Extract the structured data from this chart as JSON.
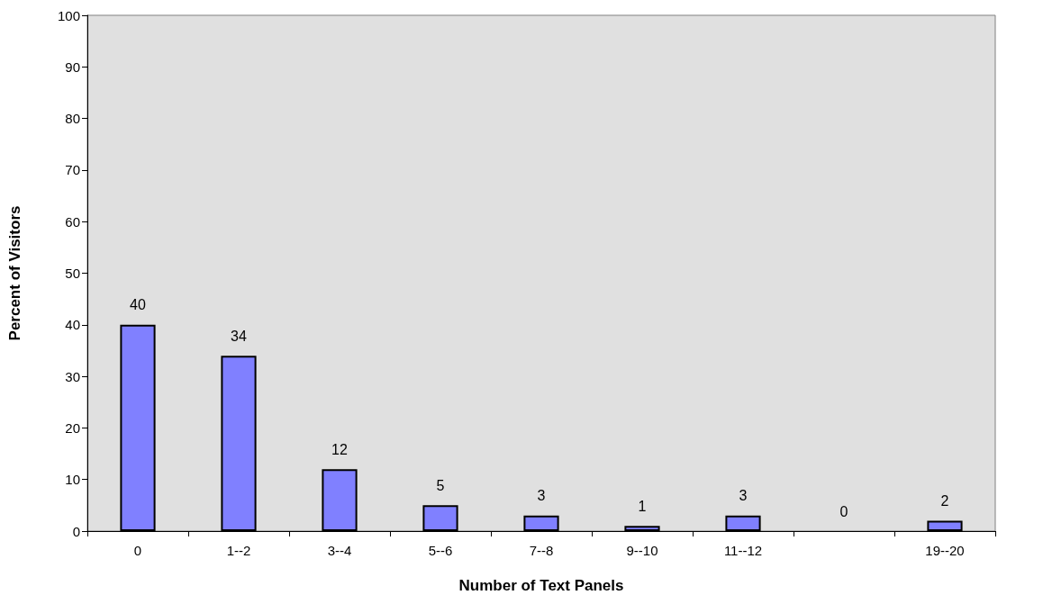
{
  "chart_data": {
    "type": "bar",
    "xlabel": "Number of Text Panels",
    "ylabel": "Percent of Visitors",
    "categories": [
      "0",
      "1--2",
      "3--4",
      "5--6",
      "7--8",
      "9--10",
      "11--12",
      null,
      "19--20"
    ],
    "values": [
      40,
      34,
      12,
      5,
      3,
      1,
      3,
      0,
      2
    ],
    "color": "#8080ff",
    "ylim": [
      0,
      100
    ],
    "yticks": [
      0,
      10,
      20,
      30,
      40,
      50,
      60,
      70,
      80,
      90,
      100
    ],
    "data_labels": true,
    "grid": false
  }
}
